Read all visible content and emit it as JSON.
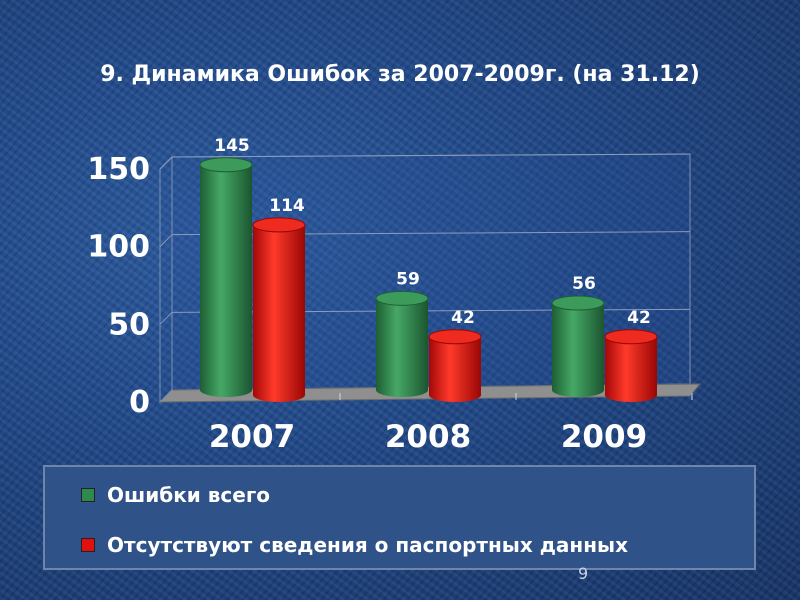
{
  "slide": {
    "title": "9. Динамика Ошибок за 2007-2009г. (на 31.12)",
    "page_number": "9"
  },
  "chart_data": {
    "type": "bar",
    "title": "9. Динамика Ошибок за 2007-2009г. (на 31.12)",
    "categories": [
      "2007",
      "2008",
      "2009"
    ],
    "series": [
      {
        "name": "Ошибки всего",
        "values": [
          145,
          59,
          56
        ],
        "color": "#2e8a4c"
      },
      {
        "name": "Отсутствуют сведения о паспортных данных",
        "values": [
          114,
          42,
          42
        ],
        "color": "#e01010"
      }
    ],
    "ylim": [
      0,
      150
    ],
    "yticks": [
      0,
      50,
      100,
      150
    ],
    "grid": true,
    "legend_position": "bottom"
  }
}
